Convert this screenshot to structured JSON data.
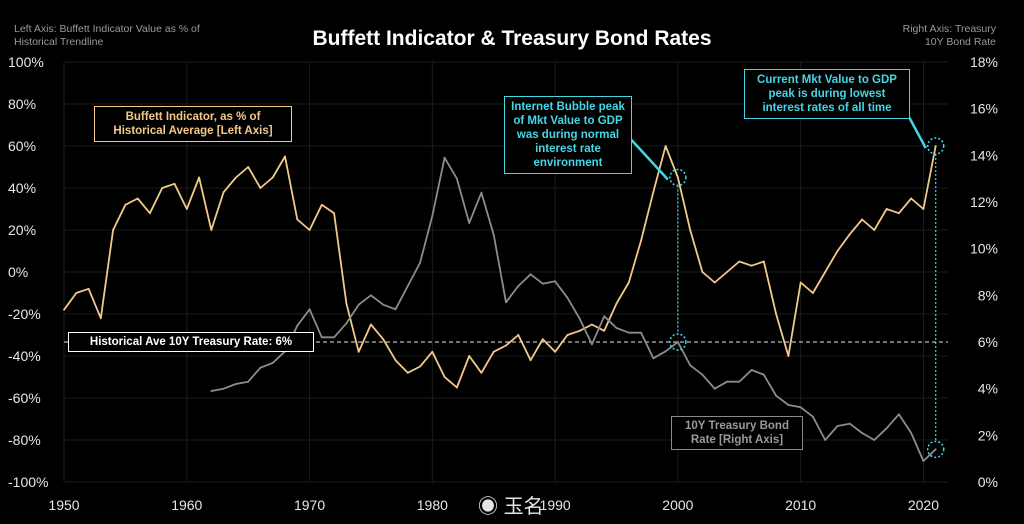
{
  "header": {
    "left_axis_note": "Left Axis: Buffett Indicator Value as % of Historical Trendline",
    "right_axis_note": "Right Axis: Treasury 10Y Bond Rate",
    "title": "Buffett Indicator & Treasury Bond Rates"
  },
  "annotations": {
    "buffett_label": "Buffett Indicator, as % of Historical Average [Left Axis]",
    "bubble_note": "Internet Bubble peak of Mkt Value to GDP was during normal interest rate environment",
    "current_note": "Current Mkt Value to GDP peak is during lowest interest rates of all time",
    "avg_rate_label": "Historical Ave 10Y Treasury Rate: 6%",
    "treasury_label": "10Y Treasury Bond Rate [Right Axis]",
    "watermark": "玉名"
  },
  "colors": {
    "buffett": "#f3c98a",
    "treasury": "#8c8c8c",
    "cyan": "#45d6e6",
    "background": "#000000"
  },
  "chart_data": {
    "type": "line",
    "title": "Buffett Indicator & Treasury Bond Rates",
    "x_ticks": [
      1950,
      1960,
      1970,
      1980,
      1990,
      2000,
      2010,
      2020
    ],
    "xlim": [
      1950,
      2022
    ],
    "left_ticks": [
      "100%",
      "80%",
      "60%",
      "40%",
      "20%",
      "0%",
      "-20%",
      "-40%",
      "-60%",
      "-80%",
      "-100%"
    ],
    "ylim_left": [
      -100,
      100
    ],
    "right_ticks": [
      "18%",
      "16%",
      "14%",
      "12%",
      "10%",
      "8%",
      "6%",
      "4%",
      "2%",
      "0%"
    ],
    "ylim_right": [
      0,
      18
    ],
    "reference_line": {
      "axis": "right",
      "value": 6
    },
    "series": [
      {
        "name": "Buffett Indicator, as % of Historical Average [Left Axis]",
        "axis": "left",
        "x": [
          1950,
          1951,
          1952,
          1953,
          1954,
          1955,
          1956,
          1957,
          1958,
          1959,
          1960,
          1961,
          1962,
          1963,
          1964,
          1965,
          1966,
          1967,
          1968,
          1969,
          1970,
          1971,
          1972,
          1973,
          1974,
          1975,
          1976,
          1977,
          1978,
          1979,
          1980,
          1981,
          1982,
          1983,
          1984,
          1985,
          1986,
          1987,
          1988,
          1989,
          1990,
          1991,
          1992,
          1993,
          1994,
          1995,
          1996,
          1997,
          1998,
          1999,
          2000,
          2001,
          2002,
          2003,
          2004,
          2005,
          2006,
          2007,
          2008,
          2009,
          2010,
          2011,
          2012,
          2013,
          2014,
          2015,
          2016,
          2017,
          2018,
          2019,
          2020,
          2021
        ],
        "y": [
          -18,
          -10,
          -8,
          -22,
          20,
          32,
          35,
          28,
          40,
          42,
          30,
          45,
          20,
          38,
          45,
          50,
          40,
          45,
          55,
          25,
          20,
          32,
          28,
          -15,
          -38,
          -25,
          -32,
          -42,
          -48,
          -45,
          -38,
          -50,
          -55,
          -40,
          -48,
          -38,
          -35,
          -30,
          -42,
          -32,
          -38,
          -30,
          -28,
          -25,
          -28,
          -15,
          -5,
          15,
          38,
          60,
          45,
          20,
          0,
          -5,
          0,
          5,
          3,
          5,
          -20,
          -40,
          -5,
          -10,
          0,
          10,
          18,
          25,
          20,
          30,
          28,
          35,
          30,
          60
        ]
      },
      {
        "name": "10Y Treasury Bond Rate [Right Axis]",
        "axis": "right",
        "x": [
          1962,
          1963,
          1964,
          1965,
          1966,
          1967,
          1968,
          1969,
          1970,
          1971,
          1972,
          1973,
          1974,
          1975,
          1976,
          1977,
          1978,
          1979,
          1980,
          1981,
          1982,
          1983,
          1984,
          1985,
          1986,
          1987,
          1988,
          1989,
          1990,
          1991,
          1992,
          1993,
          1994,
          1995,
          1996,
          1997,
          1998,
          1999,
          2000,
          2001,
          2002,
          2003,
          2004,
          2005,
          2006,
          2007,
          2008,
          2009,
          2010,
          2011,
          2012,
          2013,
          2014,
          2015,
          2016,
          2017,
          2018,
          2019,
          2020,
          2021
        ],
        "y": [
          3.9,
          4.0,
          4.2,
          4.3,
          4.9,
          5.1,
          5.6,
          6.7,
          7.4,
          6.2,
          6.2,
          6.8,
          7.6,
          8.0,
          7.6,
          7.4,
          8.4,
          9.4,
          11.4,
          13.9,
          13.0,
          11.1,
          12.4,
          10.6,
          7.7,
          8.4,
          8.9,
          8.5,
          8.6,
          7.9,
          7.0,
          5.9,
          7.1,
          6.6,
          6.4,
          6.4,
          5.3,
          5.6,
          6.0,
          5.0,
          4.6,
          4.0,
          4.3,
          4.3,
          4.8,
          4.6,
          3.7,
          3.3,
          3.2,
          2.8,
          1.8,
          2.4,
          2.5,
          2.1,
          1.8,
          2.3,
          2.9,
          2.1,
          0.9,
          1.4
        ]
      }
    ]
  }
}
